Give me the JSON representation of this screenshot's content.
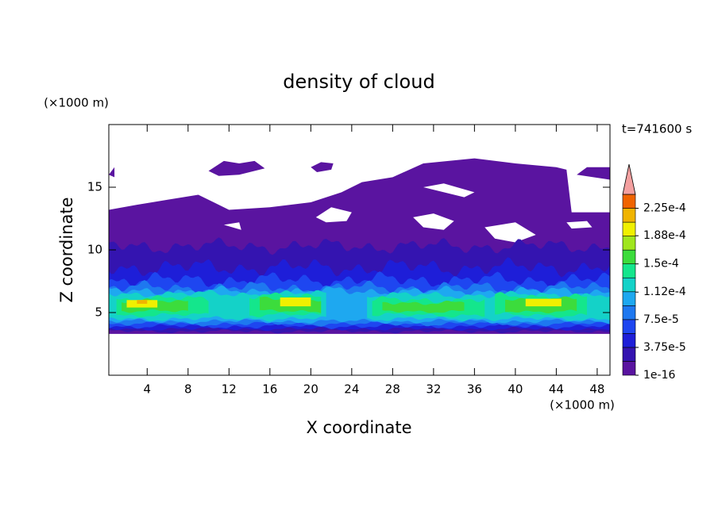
{
  "chart_data": {
    "type": "contour",
    "title": "density of cloud",
    "x_label": "X coordinate",
    "y_label": "Z coordinate",
    "x_unit": "(×1000 m)",
    "y_unit": "(×1000 m)",
    "time_label": "t=741600 s",
    "xlim": [
      0.25,
      49.25
    ],
    "ylim": [
      0,
      20
    ],
    "xticks": [
      4,
      8,
      12,
      16,
      20,
      24,
      28,
      32,
      36,
      40,
      44,
      48
    ],
    "yticks": [
      5,
      10,
      15
    ],
    "levels": [
      1e-16,
      1.875e-05,
      3.75e-05,
      5.625e-05,
      7.5e-05,
      9.375e-05,
      0.0001125,
      0.00013125,
      0.00015,
      0.00016875,
      0.0001875,
      0.00020625,
      0.000225,
      0.00024375
    ],
    "colors": [
      "#5a14a0",
      "#3414b0",
      "#1e1ed8",
      "#1e46f0",
      "#1e78f0",
      "#1ea8f0",
      "#14d2c8",
      "#14e68c",
      "#3cdc3c",
      "#a0e61e",
      "#f0f000",
      "#f0b400",
      "#f06400"
    ],
    "extend_color": "#f4a0a0",
    "colorbar_ticks": [
      {
        "value": 1e-16,
        "label": "1e-16"
      },
      {
        "value": 3.75e-05,
        "label": "3.75e-5"
      },
      {
        "value": 7.5e-05,
        "label": "7.5e-5"
      },
      {
        "value": 0.000112,
        "label": "1.12e-4"
      },
      {
        "value": 0.00015,
        "label": "1.5e-4"
      },
      {
        "value": 0.000188,
        "label": "1.88e-4"
      },
      {
        "value": 0.000225,
        "label": "2.25e-4"
      }
    ]
  }
}
